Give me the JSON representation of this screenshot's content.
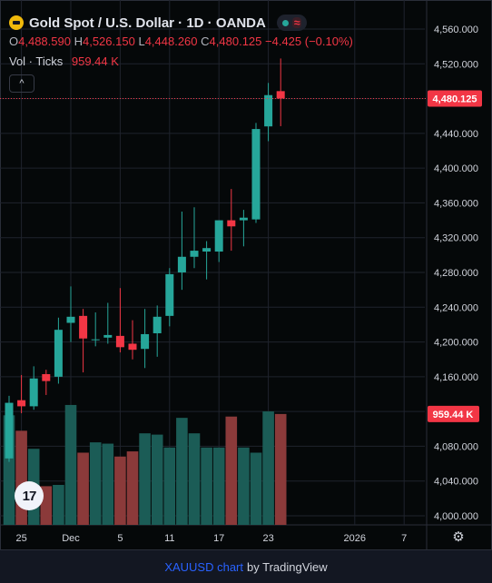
{
  "legend": {
    "title": "Gold Spot / U.S. Dollar · 1D · OANDA",
    "ohlc": [
      {
        "k": "O",
        "v": "4,488.590"
      },
      {
        "k": "H",
        "v": "4,526.150"
      },
      {
        "k": "L",
        "v": "4,448.260"
      },
      {
        "k": "C",
        "v": "4,480.125"
      }
    ],
    "change": "−4.425 (−0.10%)",
    "vol_label": "Vol · Ticks",
    "vol_value": "959.44 K",
    "collapse_glyph": "^"
  },
  "footer": {
    "link": "XAUUSD chart",
    "by": "by TradingView"
  },
  "logo_text": "17",
  "chart_data": {
    "type": "candlestick",
    "instrument": "Gold Spot / U.S. Dollar",
    "interval": "1D",
    "source": "OANDA",
    "ylim": [
      3990,
      4580
    ],
    "y_ticks": [
      "4,560.000",
      "4,520.000",
      "4,480.000",
      "4,440.000",
      "4,400.000",
      "4,360.000",
      "4,320.000",
      "4,280.000",
      "4,240.000",
      "4,200.000",
      "4,160.000",
      "4,120.000",
      "4,080.000",
      "4,040.000",
      "4,000.000"
    ],
    "y_tick_values": [
      4560,
      4520,
      4480,
      4440,
      4400,
      4360,
      4320,
      4280,
      4240,
      4200,
      4160,
      4120,
      4080,
      4040,
      4000
    ],
    "x_ticks": [
      {
        "label": "25",
        "bar": 1
      },
      {
        "label": "Dec",
        "bar": 5
      },
      {
        "label": "5",
        "bar": 9
      },
      {
        "label": "11",
        "bar": 13
      },
      {
        "label": "17",
        "bar": 17
      },
      {
        "label": "23",
        "bar": 21
      },
      {
        "label": "2026",
        "bar": 28
      },
      {
        "label": "7",
        "bar": 32
      }
    ],
    "last_price_label": "4,480.125",
    "last_price": 4480.125,
    "last_volume_label": "959.44 K",
    "bars": [
      {
        "o": 4066,
        "h": 4138,
        "l": 4062,
        "c": 4130,
        "v": 0.85
      },
      {
        "o": 4133,
        "h": 4162,
        "l": 4118,
        "c": 4126,
        "v": 0.73
      },
      {
        "o": 4126,
        "h": 4172,
        "l": 4122,
        "c": 4158,
        "v": 0.59
      },
      {
        "o": 4163,
        "h": 4168,
        "l": 4139,
        "c": 4155,
        "v": 0.3
      },
      {
        "o": 4160,
        "h": 4228,
        "l": 4152,
        "c": 4214,
        "v": 0.31
      },
      {
        "o": 4222,
        "h": 4264,
        "l": 4200,
        "c": 4229,
        "v": 0.93
      },
      {
        "o": 4230,
        "h": 4238,
        "l": 4165,
        "c": 4204,
        "v": 0.56
      },
      {
        "o": 4203,
        "h": 4234,
        "l": 4195,
        "c": 4203,
        "v": 0.64
      },
      {
        "o": 4205,
        "h": 4245,
        "l": 4198,
        "c": 4208,
        "v": 0.63
      },
      {
        "o": 4207,
        "h": 4262,
        "l": 4188,
        "c": 4194,
        "v": 0.53
      },
      {
        "o": 4198,
        "h": 4225,
        "l": 4180,
        "c": 4191,
        "v": 0.57
      },
      {
        "o": 4192,
        "h": 4238,
        "l": 4170,
        "c": 4209,
        "v": 0.71
      },
      {
        "o": 4210,
        "h": 4242,
        "l": 4183,
        "c": 4229,
        "v": 0.7
      },
      {
        "o": 4230,
        "h": 4285,
        "l": 4218,
        "c": 4278,
        "v": 0.6
      },
      {
        "o": 4280,
        "h": 4350,
        "l": 4260,
        "c": 4298,
        "v": 0.83
      },
      {
        "o": 4298,
        "h": 4355,
        "l": 4285,
        "c": 4305,
        "v": 0.71
      },
      {
        "o": 4304,
        "h": 4316,
        "l": 4272,
        "c": 4308,
        "v": 0.6
      },
      {
        "o": 4304,
        "h": 4340,
        "l": 4292,
        "c": 4340,
        "v": 0.6
      },
      {
        "o": 4340,
        "h": 4376,
        "l": 4305,
        "c": 4333,
        "v": 0.84
      },
      {
        "o": 4340,
        "h": 4352,
        "l": 4310,
        "c": 4343,
        "v": 0.6
      },
      {
        "o": 4341,
        "h": 4452,
        "l": 4337,
        "c": 4445,
        "v": 0.56
      },
      {
        "o": 4448,
        "h": 4498,
        "l": 4431,
        "c": 4484,
        "v": 0.88
      },
      {
        "o": 4488.59,
        "h": 4526.15,
        "l": 4448.26,
        "c": 4480.125,
        "v": 0.86
      }
    ]
  },
  "colors": {
    "up": "#26a69a",
    "down": "#f23645",
    "up_volume": "#1b5c56",
    "down_volume": "#8b3a3a",
    "grid": "#1f232d",
    "axis_text": "#d1d4dc",
    "price_line": "#f23645"
  },
  "icons": [
    "gold-coin-icon",
    "live-dot-icon",
    "wave-icon",
    "chevron-up-icon",
    "settings-gear-icon"
  ]
}
